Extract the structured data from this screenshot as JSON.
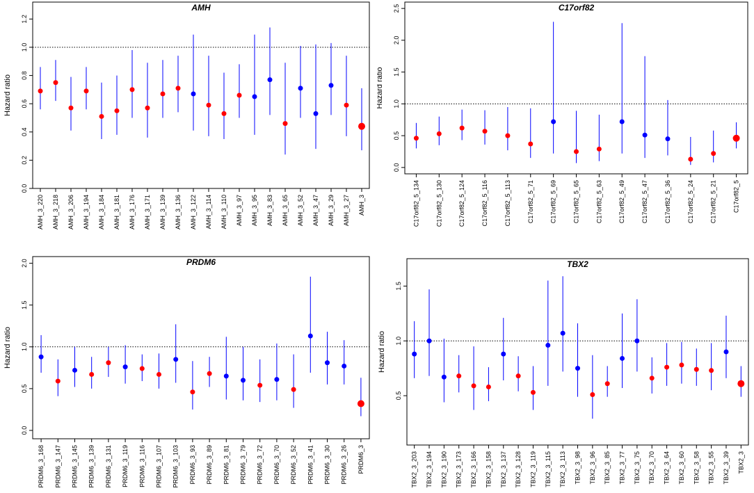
{
  "chart_data": [
    {
      "type": "scatter",
      "title": "AMH",
      "ylabel": "Hazard ratio",
      "ylim": [
        0,
        1.32
      ],
      "yticks": [
        "0.0",
        "0.2",
        "0.4",
        "0.6",
        "0.8",
        "1.0",
        "1.2"
      ],
      "reference_line": 1.0,
      "categories": [
        "AMH_3_220",
        "AMH_3_218",
        "AMH_3_206",
        "AMH_3_194",
        "AMH_3_184",
        "AMH_3_181",
        "AMH_3_176",
        "AMH_3_171",
        "AMH_3_139",
        "AMH_3_136",
        "AMH_3_122",
        "AMH_3_114",
        "AMH_3_110",
        "AMH_3_97",
        "AMH_3_95",
        "AMH_3_83",
        "AMH_3_65",
        "AMH_3_52",
        "AMH_3_47",
        "AMH_3_29",
        "AMH_3_27",
        "AMH_3"
      ],
      "values": [
        0.69,
        0.75,
        0.57,
        0.69,
        0.51,
        0.55,
        0.7,
        0.57,
        0.67,
        0.71,
        0.67,
        0.59,
        0.53,
        0.66,
        0.65,
        0.77,
        0.46,
        0.71,
        0.53,
        0.73,
        0.59,
        0.44
      ],
      "lower": [
        0.56,
        0.62,
        0.41,
        0.56,
        0.35,
        0.38,
        0.5,
        0.36,
        0.5,
        0.54,
        0.41,
        0.37,
        0.35,
        0.5,
        0.38,
        0.52,
        0.24,
        0.5,
        0.28,
        0.52,
        0.37,
        0.27
      ],
      "upper": [
        0.86,
        0.91,
        0.79,
        0.86,
        0.75,
        0.8,
        0.98,
        0.89,
        0.91,
        0.94,
        1.09,
        0.94,
        0.82,
        0.88,
        1.09,
        1.14,
        0.89,
        1.01,
        1.02,
        1.03,
        0.94,
        0.71
      ],
      "colors": [
        "#ff0000",
        "#ff0000",
        "#ff0000",
        "#ff0000",
        "#ff0000",
        "#ff0000",
        "#ff0000",
        "#ff0000",
        "#ff0000",
        "#ff0000",
        "#0000ff",
        "#ff0000",
        "#ff0000",
        "#ff0000",
        "#0000ff",
        "#0000ff",
        "#ff0000",
        "#0000ff",
        "#0000ff",
        "#0000ff",
        "#ff0000",
        "#ff0000"
      ],
      "ci_color": "#0000ff"
    },
    {
      "type": "scatter",
      "title": "C17orf82",
      "ylabel": "Hazard ratio",
      "ylim": [
        -0.1,
        2.6
      ],
      "yticks": [
        "0.0",
        "0.5",
        "1.0",
        "1.5",
        "2.0",
        "2.5"
      ],
      "reference_line": 1.0,
      "categories": [
        "C17orf82_5_134",
        "C17orf82_5_130",
        "C17orf82_5_124",
        "C17orf82_5_116",
        "C17orf82_5_113",
        "C17orf82_5_71",
        "C17orf82_5_69",
        "C17orf82_5_65",
        "C17orf82_5_63",
        "C17orf82_5_49",
        "C17orf82_5_47",
        "C17orf82_5_36",
        "C17orf82_5_24",
        "C17orf82_5_21",
        "C17orf82_5"
      ],
      "values": [
        0.46,
        0.53,
        0.62,
        0.57,
        0.5,
        0.37,
        0.72,
        0.25,
        0.29,
        0.72,
        0.51,
        0.45,
        0.13,
        0.22,
        0.46
      ],
      "lower": [
        0.3,
        0.35,
        0.43,
        0.36,
        0.27,
        0.15,
        0.22,
        0.07,
        0.1,
        0.22,
        0.15,
        0.19,
        0.04,
        0.08,
        0.3
      ],
      "upper": [
        0.7,
        0.8,
        0.91,
        0.9,
        0.95,
        0.93,
        2.29,
        0.89,
        0.83,
        2.27,
        1.75,
        1.06,
        0.48,
        0.58,
        0.71
      ],
      "colors": [
        "#ff0000",
        "#ff0000",
        "#ff0000",
        "#ff0000",
        "#ff0000",
        "#ff0000",
        "#0000ff",
        "#ff0000",
        "#ff0000",
        "#0000ff",
        "#0000ff",
        "#0000ff",
        "#ff0000",
        "#ff0000",
        "#ff0000"
      ],
      "ci_color": "#0000ff"
    },
    {
      "type": "scatter",
      "title": "PRDM6",
      "ylabel": "Hazard ratio",
      "ylim": [
        -0.1,
        2.08
      ],
      "yticks": [
        "0.0",
        "0.5",
        "1.0",
        "1.5",
        "2.0"
      ],
      "reference_line": 1.0,
      "categories": [
        "PRDM6_3_168",
        "PRDM6_3_147",
        "PRDM6_3_145",
        "PRDM6_3_139",
        "PRDM6_3_131",
        "PRDM6_3_119",
        "PRDM6_3_116",
        "PRDM6_3_107",
        "PRDM6_3_103",
        "PRDM6_3_93",
        "PRDM6_3_89",
        "PRDM6_3_81",
        "PRDM6_3_79",
        "PRDM6_3_72",
        "PRDM6_3_70",
        "PRDM6_3_52",
        "PRDM6_3_41",
        "PRDM6_3_30",
        "PRDM6_3_26",
        "PRDM6_3"
      ],
      "values": [
        0.88,
        0.59,
        0.72,
        0.67,
        0.81,
        0.76,
        0.74,
        0.67,
        0.85,
        0.46,
        0.68,
        0.65,
        0.6,
        0.54,
        0.61,
        0.49,
        1.13,
        0.81,
        0.77,
        0.32
      ],
      "lower": [
        0.69,
        0.41,
        0.52,
        0.5,
        0.64,
        0.56,
        0.59,
        0.5,
        0.57,
        0.25,
        0.52,
        0.37,
        0.36,
        0.34,
        0.36,
        0.27,
        0.69,
        0.55,
        0.55,
        0.17
      ],
      "upper": [
        1.14,
        0.85,
        1.0,
        0.88,
        1.0,
        1.02,
        0.91,
        0.92,
        1.27,
        0.83,
        0.88,
        1.12,
        1.0,
        0.85,
        1.04,
        0.91,
        1.84,
        1.18,
        1.08,
        0.63
      ],
      "colors": [
        "#0000ff",
        "#ff0000",
        "#0000ff",
        "#ff0000",
        "#ff0000",
        "#0000ff",
        "#ff0000",
        "#ff0000",
        "#0000ff",
        "#ff0000",
        "#ff0000",
        "#0000ff",
        "#0000ff",
        "#ff0000",
        "#0000ff",
        "#ff0000",
        "#0000ff",
        "#0000ff",
        "#0000ff",
        "#ff0000"
      ],
      "ci_color": "#0000ff"
    },
    {
      "type": "scatter",
      "title": "TBX2",
      "ylabel": "Hazard ratio",
      "ylim": [
        0.05,
        1.75
      ],
      "yticks": [
        "0.5",
        "1.0",
        "1.5"
      ],
      "reference_line": 1.0,
      "categories": [
        "TBX2_3_203",
        "TBX2_3_194",
        "TBX2_3_190",
        "TBX2_3_173",
        "TBX2_3_166",
        "TBX2_3_158",
        "TBX2_3_137",
        "TBX2_3_128",
        "TBX2_3_119",
        "TBX2_3_115",
        "TBX2_3_113",
        "TBX2_3_98",
        "TBX2_3_96",
        "TBX2_3_85",
        "TBX2_3_77",
        "TBX2_3_75",
        "TBX2_3_70",
        "TBX2_3_64",
        "TBX2_3_60",
        "TBX2_3_58",
        "TBX2_3_55",
        "TBX2_3_39",
        "TBX2_3"
      ],
      "values": [
        0.88,
        1.0,
        0.67,
        0.68,
        0.59,
        0.58,
        0.88,
        0.68,
        0.53,
        0.96,
        1.07,
        0.75,
        0.51,
        0.61,
        0.84,
        1.0,
        0.66,
        0.76,
        0.78,
        0.74,
        0.73,
        0.9,
        0.61
      ],
      "lower": [
        0.66,
        0.68,
        0.44,
        0.53,
        0.37,
        0.45,
        0.64,
        0.54,
        0.37,
        0.59,
        0.72,
        0.49,
        0.29,
        0.49,
        0.57,
        0.72,
        0.52,
        0.59,
        0.61,
        0.59,
        0.55,
        0.66,
        0.49
      ],
      "upper": [
        1.18,
        1.47,
        1.02,
        0.87,
        0.95,
        0.76,
        1.21,
        0.86,
        0.77,
        1.55,
        1.59,
        1.16,
        0.87,
        0.77,
        1.25,
        1.38,
        0.85,
        0.98,
        0.99,
        0.93,
        0.98,
        1.23,
        0.77
      ],
      "colors": [
        "#0000ff",
        "#0000ff",
        "#0000ff",
        "#ff0000",
        "#ff0000",
        "#ff0000",
        "#0000ff",
        "#ff0000",
        "#ff0000",
        "#0000ff",
        "#0000ff",
        "#0000ff",
        "#ff0000",
        "#ff0000",
        "#0000ff",
        "#0000ff",
        "#ff0000",
        "#ff0000",
        "#ff0000",
        "#ff0000",
        "#ff0000",
        "#0000ff",
        "#ff0000"
      ],
      "ci_color": "#0000ff"
    }
  ]
}
